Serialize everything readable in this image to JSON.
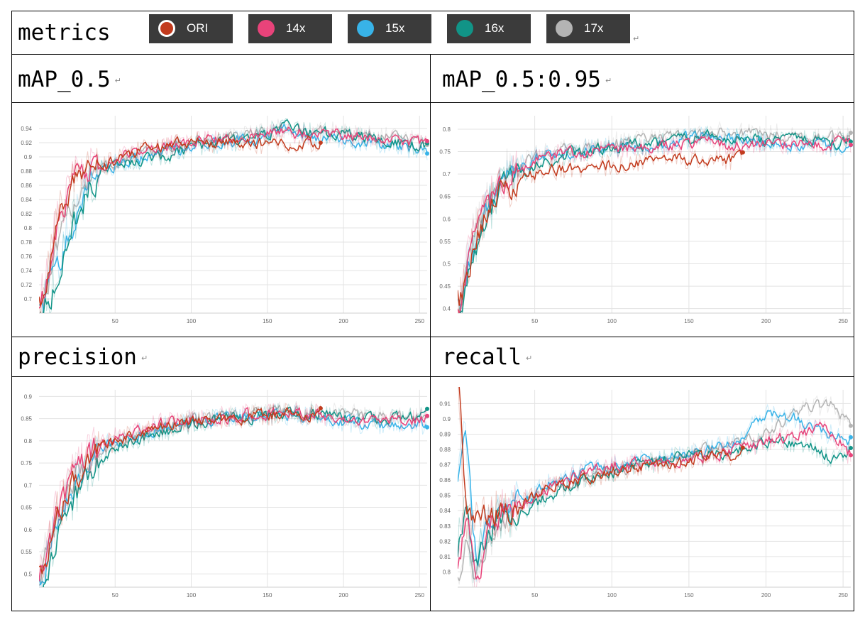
{
  "header": {
    "title": "metrics",
    "legend": [
      {
        "label": "ORI",
        "color": "#c23b1e"
      },
      {
        "label": "14x",
        "color": "#e8437a"
      },
      {
        "label": "15x",
        "color": "#38b3e8"
      },
      {
        "label": "16x",
        "color": "#119487"
      },
      {
        "label": "17x",
        "color": "#b4b4b4"
      }
    ]
  },
  "panels": {
    "map50": {
      "title": "mAP_0.5"
    },
    "map5095": {
      "title": "mAP_0.5:0.95"
    },
    "precision": {
      "title": "precision"
    },
    "recall": {
      "title": "recall"
    }
  },
  "chart_data": [
    {
      "type": "line",
      "title": "mAP_0.5",
      "xlabel": "",
      "ylabel": "",
      "xlim": [
        0,
        255
      ],
      "ylim": [
        0.68,
        0.958
      ],
      "xticks": [
        50,
        100,
        150,
        200,
        250
      ],
      "yticks": [
        0.7,
        0.72,
        0.74,
        0.76,
        0.78,
        0.8,
        0.82,
        0.84,
        0.86,
        0.88,
        0.9,
        0.92,
        0.94
      ],
      "grid": true,
      "series": [
        {
          "name": "ORI",
          "x": [
            0,
            10,
            20,
            30,
            40,
            50,
            60,
            80,
            100,
            120,
            140,
            160,
            185
          ],
          "y": [
            0.68,
            0.8,
            0.86,
            0.88,
            0.885,
            0.895,
            0.905,
            0.915,
            0.92,
            0.92,
            0.92,
            0.915,
            0.92
          ]
        },
        {
          "name": "14x",
          "x": [
            0,
            10,
            20,
            30,
            40,
            50,
            60,
            80,
            100,
            120,
            140,
            160,
            180,
            200,
            220,
            255
          ],
          "y": [
            0.69,
            0.8,
            0.86,
            0.88,
            0.888,
            0.895,
            0.905,
            0.915,
            0.92,
            0.925,
            0.93,
            0.935,
            0.93,
            0.93,
            0.925,
            0.92
          ]
        },
        {
          "name": "15x",
          "x": [
            0,
            10,
            20,
            30,
            40,
            50,
            60,
            80,
            100,
            120,
            140,
            160,
            180,
            200,
            220,
            255
          ],
          "y": [
            0.68,
            0.74,
            0.8,
            0.86,
            0.885,
            0.89,
            0.895,
            0.905,
            0.915,
            0.92,
            0.925,
            0.94,
            0.93,
            0.925,
            0.915,
            0.91
          ]
        },
        {
          "name": "16x",
          "x": [
            0,
            10,
            20,
            30,
            40,
            50,
            60,
            80,
            100,
            120,
            140,
            160,
            180,
            200,
            220,
            255
          ],
          "y": [
            0.68,
            0.72,
            0.79,
            0.85,
            0.88,
            0.89,
            0.89,
            0.9,
            0.915,
            0.92,
            0.925,
            0.94,
            0.935,
            0.93,
            0.925,
            0.915
          ]
        },
        {
          "name": "17x",
          "x": [
            0,
            10,
            20,
            30,
            40,
            50,
            60,
            80,
            100,
            120,
            140,
            160,
            180,
            200,
            220,
            255
          ],
          "y": [
            0.68,
            0.76,
            0.83,
            0.87,
            0.885,
            0.89,
            0.9,
            0.91,
            0.92,
            0.925,
            0.93,
            0.94,
            0.935,
            0.935,
            0.93,
            0.92
          ]
        }
      ]
    },
    {
      "type": "line",
      "title": "mAP_0.5:0.95",
      "xlabel": "",
      "ylabel": "",
      "xlim": [
        0,
        255
      ],
      "ylim": [
        0.39,
        0.83
      ],
      "xticks": [
        50,
        100,
        150,
        200,
        250
      ],
      "yticks": [
        0.4,
        0.45,
        0.5,
        0.55,
        0.6,
        0.65,
        0.7,
        0.75,
        0.8
      ],
      "grid": true,
      "series": [
        {
          "name": "ORI",
          "x": [
            0,
            10,
            20,
            30,
            40,
            50,
            60,
            80,
            100,
            120,
            140,
            160,
            185
          ],
          "y": [
            0.4,
            0.55,
            0.63,
            0.67,
            0.69,
            0.7,
            0.71,
            0.715,
            0.72,
            0.725,
            0.73,
            0.73,
            0.735
          ]
        },
        {
          "name": "14x",
          "x": [
            0,
            10,
            20,
            30,
            40,
            50,
            60,
            80,
            100,
            120,
            140,
            160,
            180,
            200,
            220,
            255
          ],
          "y": [
            0.4,
            0.56,
            0.64,
            0.68,
            0.71,
            0.73,
            0.74,
            0.75,
            0.755,
            0.76,
            0.765,
            0.77,
            0.765,
            0.765,
            0.765,
            0.77
          ]
        },
        {
          "name": "15x",
          "x": [
            0,
            10,
            20,
            30,
            40,
            50,
            60,
            80,
            100,
            120,
            140,
            160,
            180,
            200,
            220,
            255
          ],
          "y": [
            0.4,
            0.55,
            0.64,
            0.69,
            0.72,
            0.735,
            0.745,
            0.755,
            0.76,
            0.765,
            0.77,
            0.79,
            0.775,
            0.77,
            0.765,
            0.76
          ]
        },
        {
          "name": "16x",
          "x": [
            0,
            10,
            20,
            30,
            40,
            50,
            60,
            80,
            100,
            120,
            140,
            160,
            180,
            200,
            220,
            255
          ],
          "y": [
            0.39,
            0.53,
            0.62,
            0.67,
            0.7,
            0.72,
            0.735,
            0.75,
            0.76,
            0.765,
            0.775,
            0.79,
            0.78,
            0.775,
            0.775,
            0.77
          ]
        },
        {
          "name": "17x",
          "x": [
            0,
            10,
            20,
            30,
            40,
            50,
            60,
            80,
            100,
            120,
            140,
            160,
            180,
            200,
            220,
            255
          ],
          "y": [
            0.4,
            0.56,
            0.65,
            0.7,
            0.72,
            0.74,
            0.75,
            0.76,
            0.77,
            0.775,
            0.785,
            0.79,
            0.795,
            0.79,
            0.785,
            0.78
          ]
        }
      ]
    },
    {
      "type": "line",
      "title": "precision",
      "xlabel": "",
      "ylabel": "",
      "xlim": [
        0,
        255
      ],
      "ylim": [
        0.47,
        0.915
      ],
      "xticks": [
        50,
        100,
        150,
        200,
        250
      ],
      "yticks": [
        0.5,
        0.55,
        0.6,
        0.65,
        0.7,
        0.75,
        0.8,
        0.85,
        0.9
      ],
      "grid": true,
      "series": [
        {
          "name": "ORI",
          "x": [
            0,
            10,
            20,
            30,
            40,
            50,
            60,
            80,
            100,
            120,
            140,
            160,
            185
          ],
          "y": [
            0.47,
            0.62,
            0.7,
            0.75,
            0.78,
            0.8,
            0.81,
            0.83,
            0.845,
            0.85,
            0.855,
            0.86,
            0.86
          ]
        },
        {
          "name": "14x",
          "x": [
            0,
            10,
            20,
            30,
            40,
            50,
            60,
            80,
            100,
            120,
            140,
            160,
            180,
            200,
            220,
            255
          ],
          "y": [
            0.48,
            0.63,
            0.71,
            0.76,
            0.79,
            0.81,
            0.82,
            0.84,
            0.85,
            0.855,
            0.86,
            0.865,
            0.86,
            0.85,
            0.84,
            0.85
          ]
        },
        {
          "name": "15x",
          "x": [
            0,
            10,
            20,
            30,
            40,
            50,
            60,
            80,
            100,
            120,
            140,
            160,
            180,
            200,
            220,
            255
          ],
          "y": [
            0.47,
            0.6,
            0.69,
            0.74,
            0.78,
            0.8,
            0.81,
            0.83,
            0.845,
            0.85,
            0.855,
            0.86,
            0.855,
            0.845,
            0.835,
            0.835
          ]
        },
        {
          "name": "16x",
          "x": [
            0,
            10,
            20,
            30,
            40,
            50,
            60,
            80,
            100,
            120,
            140,
            160,
            180,
            200,
            220,
            255
          ],
          "y": [
            0.47,
            0.57,
            0.66,
            0.72,
            0.76,
            0.79,
            0.8,
            0.82,
            0.84,
            0.85,
            0.855,
            0.865,
            0.86,
            0.855,
            0.85,
            0.855
          ]
        },
        {
          "name": "17x",
          "x": [
            0,
            10,
            20,
            30,
            40,
            50,
            60,
            80,
            100,
            120,
            140,
            160,
            180,
            200,
            220,
            255
          ],
          "y": [
            0.49,
            0.62,
            0.7,
            0.75,
            0.78,
            0.8,
            0.81,
            0.83,
            0.845,
            0.855,
            0.86,
            0.865,
            0.865,
            0.86,
            0.855,
            0.85
          ]
        }
      ]
    },
    {
      "type": "line",
      "title": "recall",
      "xlabel": "",
      "ylabel": "",
      "xlim": [
        0,
        255
      ],
      "ylim": [
        0.79,
        0.919
      ],
      "xticks": [
        50,
        100,
        150,
        200,
        250
      ],
      "yticks": [
        0.8,
        0.81,
        0.82,
        0.83,
        0.84,
        0.85,
        0.86,
        0.87,
        0.88,
        0.89,
        0.9,
        0.91
      ],
      "grid": true,
      "series": [
        {
          "name": "ORI",
          "x": [
            0,
            5,
            10,
            20,
            30,
            40,
            50,
            60,
            80,
            100,
            120,
            140,
            160,
            185
          ],
          "y": [
            0.919,
            0.83,
            0.84,
            0.835,
            0.84,
            0.845,
            0.85,
            0.855,
            0.86,
            0.865,
            0.87,
            0.87,
            0.875,
            0.877
          ]
        },
        {
          "name": "14x",
          "x": [
            0,
            5,
            10,
            20,
            30,
            40,
            50,
            60,
            80,
            100,
            120,
            140,
            160,
            180,
            200,
            220,
            240,
            255
          ],
          "y": [
            0.8,
            0.85,
            0.79,
            0.83,
            0.84,
            0.845,
            0.85,
            0.855,
            0.865,
            0.87,
            0.87,
            0.87,
            0.875,
            0.88,
            0.885,
            0.89,
            0.895,
            0.875
          ]
        },
        {
          "name": "15x",
          "x": [
            0,
            5,
            10,
            20,
            30,
            40,
            50,
            60,
            80,
            100,
            120,
            140,
            160,
            180,
            200,
            220,
            240,
            255
          ],
          "y": [
            0.85,
            0.9,
            0.8,
            0.84,
            0.84,
            0.845,
            0.85,
            0.86,
            0.865,
            0.87,
            0.875,
            0.875,
            0.88,
            0.885,
            0.905,
            0.9,
            0.89,
            0.885
          ]
        },
        {
          "name": "16x",
          "x": [
            0,
            5,
            10,
            20,
            30,
            40,
            50,
            60,
            80,
            100,
            120,
            140,
            160,
            180,
            200,
            220,
            240,
            255
          ],
          "y": [
            0.82,
            0.84,
            0.8,
            0.83,
            0.835,
            0.84,
            0.845,
            0.85,
            0.86,
            0.865,
            0.87,
            0.875,
            0.875,
            0.88,
            0.885,
            0.885,
            0.875,
            0.88
          ]
        },
        {
          "name": "17x",
          "x": [
            0,
            5,
            10,
            20,
            30,
            40,
            50,
            60,
            80,
            100,
            120,
            140,
            160,
            180,
            200,
            220,
            240,
            255
          ],
          "y": [
            0.8,
            0.82,
            0.8,
            0.82,
            0.83,
            0.84,
            0.85,
            0.855,
            0.86,
            0.865,
            0.87,
            0.875,
            0.88,
            0.885,
            0.89,
            0.905,
            0.91,
            0.895
          ]
        }
      ]
    }
  ]
}
